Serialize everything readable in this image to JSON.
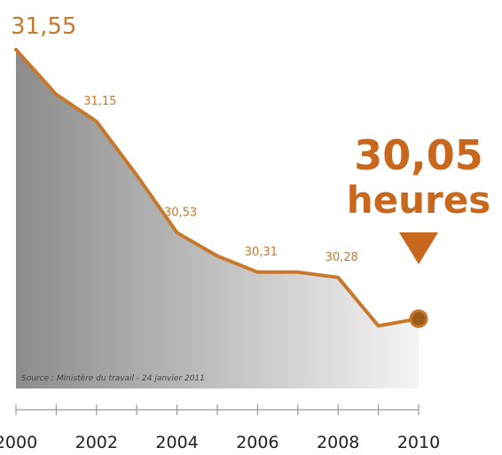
{
  "chart_data": {
    "type": "area",
    "x": [
      "2000",
      "2001",
      "2002",
      "2003",
      "2004",
      "2005",
      "2006",
      "2007",
      "2008",
      "2009",
      "2010"
    ],
    "values": [
      31.55,
      31.3,
      31.15,
      30.85,
      30.53,
      30.4,
      30.31,
      30.31,
      30.28,
      30.01,
      30.05
    ],
    "data_labels": [
      {
        "index": 0,
        "text": "31,55"
      },
      {
        "index": 2,
        "text": "31,15"
      },
      {
        "index": 4,
        "text": "30,53"
      },
      {
        "index": 6,
        "text": "30,31"
      },
      {
        "index": 8,
        "text": "30,28"
      }
    ],
    "tick_labels": [
      "2000",
      "2002",
      "2004",
      "2006",
      "2008",
      "2010"
    ],
    "ylim": [
      29.75,
      31.55
    ],
    "highlight": {
      "value": "30,05",
      "unit": "heures"
    },
    "source": "Source : Ministère du travail - 24 janvier 2011",
    "title": "",
    "xlabel": "",
    "ylabel": "",
    "grid": false,
    "colors": {
      "line": "#c8782a",
      "highlight": "#c8681e",
      "area_dark": "#8c8c8c",
      "area_light": "#f4f4f4",
      "marker_fill": "#9a5a18"
    }
  }
}
